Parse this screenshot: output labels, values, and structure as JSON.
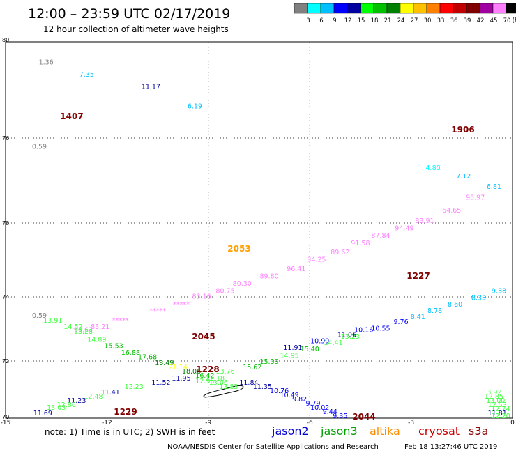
{
  "header": {
    "title": "12:00 – 23:59 UTC 02/17/2019",
    "subtitle": "12 hour collection of altimeter wave heights"
  },
  "legend": {
    "unit": "(ft)",
    "swatches": [
      {
        "value": "",
        "color": "#808080"
      },
      {
        "value": "3",
        "color": "#00ffff"
      },
      {
        "value": "6",
        "color": "#00c0ff"
      },
      {
        "value": "9",
        "color": "#0000ff"
      },
      {
        "value": "12",
        "color": "#0000a0"
      },
      {
        "value": "15",
        "color": "#00ff00"
      },
      {
        "value": "18",
        "color": "#00c000"
      },
      {
        "value": "21",
        "color": "#008000"
      },
      {
        "value": "24",
        "color": "#ffff00"
      },
      {
        "value": "27",
        "color": "#ffc000"
      },
      {
        "value": "30",
        "color": "#ff8000"
      },
      {
        "value": "33",
        "color": "#ff0000"
      },
      {
        "value": "36",
        "color": "#c00000"
      },
      {
        "value": "39",
        "color": "#800000"
      },
      {
        "value": "42",
        "color": "#a000a0"
      },
      {
        "value": "45",
        "color": "#ff80ff"
      },
      {
        "value": "70",
        "color": "#000000"
      }
    ]
  },
  "map": {
    "lat_ticks": [
      "80",
      "76",
      "78",
      "74",
      "72",
      "70"
    ],
    "lon_ticks": [
      "-15",
      "-12",
      "-9",
      "-6",
      "-3",
      "0"
    ],
    "island_name": "jan-mayen-outline"
  },
  "tracks": [
    {
      "satellite": "jason2",
      "time": "1407",
      "time_color": "#800000",
      "points": [
        {
          "v": "1.36",
          "lat": 79.5,
          "lon": -13.8,
          "color": "#808080"
        },
        {
          "v": "7.35",
          "lat": 79.25,
          "lon": -12.6,
          "color": "#00c0ff"
        },
        {
          "v": "11.17",
          "lat": 79.0,
          "lon": -10.7,
          "color": "#0000a0"
        },
        {
          "v": "6.19",
          "lat": 78.6,
          "lon": -9.4,
          "color": "#00c0ff"
        },
        {
          "v": "0.59",
          "lat": 77.75,
          "lon": -14.0,
          "color": "#808080"
        }
      ]
    },
    {
      "satellite": "altika",
      "time": "1906",
      "time_color": "#800000",
      "points": [
        {
          "v": "4.80",
          "lat": 77.25,
          "lon": -2.35,
          "color": "#00ffff"
        },
        {
          "v": "7.12",
          "lat": 77.05,
          "lon": -1.45,
          "color": "#00c0ff"
        },
        {
          "v": "6.81",
          "lat": 76.8,
          "lon": -0.55,
          "color": "#00c0ff"
        }
      ]
    },
    {
      "satellite": "s3a",
      "time": "2053",
      "time_color": "#ffa000",
      "points": [
        {
          "v": "95.97",
          "lat": 76.55,
          "lon": -1.1,
          "color": "#ff80ff"
        },
        {
          "v": "64.65",
          "lat": 76.25,
          "lon": -1.8,
          "color": "#ff80ff"
        },
        {
          "v": "83.91",
          "lat": 76.0,
          "lon": -2.6,
          "color": "#ff80ff"
        },
        {
          "v": "94.49",
          "lat": 75.8,
          "lon": -3.2,
          "color": "#ff80ff"
        },
        {
          "v": "87.84",
          "lat": 75.6,
          "lon": -3.9,
          "color": "#ff80ff"
        },
        {
          "v": "91.58",
          "lat": 75.4,
          "lon": -4.5,
          "color": "#ff80ff"
        },
        {
          "v": "89.62",
          "lat": 75.15,
          "lon": -5.1,
          "color": "#ff80ff"
        },
        {
          "v": "84.25",
          "lat": 74.95,
          "lon": -5.8,
          "color": "#ff80ff"
        },
        {
          "v": "96.41",
          "lat": 74.7,
          "lon": -6.4,
          "color": "#ff80ff"
        },
        {
          "v": "89.80",
          "lat": 74.5,
          "lon": -7.2,
          "color": "#ff80ff"
        },
        {
          "v": "80.30",
          "lat": 74.3,
          "lon": -8.0,
          "color": "#ff80ff"
        },
        {
          "v": "80.75",
          "lat": 74.1,
          "lon": -8.5,
          "color": "#ff80ff"
        },
        {
          "v": "83.16",
          "lat": 73.95,
          "lon": -9.2,
          "color": "#ff80ff"
        },
        {
          "v": "*****",
          "lat": 73.7,
          "lon": -9.8,
          "color": "#ff80ff"
        },
        {
          "v": "*****",
          "lat": 73.5,
          "lon": -10.5,
          "color": "#ff80ff"
        },
        {
          "v": "*****",
          "lat": 73.2,
          "lon": -11.6,
          "color": "#ff80ff"
        },
        {
          "v": "83.21",
          "lat": 73.0,
          "lon": -12.2,
          "color": "#ff80ff"
        },
        {
          "v": "96.63",
          "lat": 72.9,
          "lon": -12.7,
          "color": "#ff80ff"
        }
      ]
    },
    {
      "satellite": "jason3",
      "time": "2045",
      "time_color": "#800000",
      "points": [
        {
          "v": "0.59",
          "lat": 73.35,
          "lon": -14.0,
          "color": "#808080"
        },
        {
          "v": "13.91",
          "lat": 73.2,
          "lon": -13.6,
          "color": "#40ff40"
        },
        {
          "v": "14.52",
          "lat": 73.0,
          "lon": -13.0,
          "color": "#40ff40"
        },
        {
          "v": "13.28",
          "lat": 72.85,
          "lon": -12.7,
          "color": "#40ff40"
        },
        {
          "v": "14.89",
          "lat": 72.6,
          "lon": -12.3,
          "color": "#40ff40"
        },
        {
          "v": "15.53",
          "lat": 72.4,
          "lon": -11.8,
          "color": "#00c000"
        },
        {
          "v": "16.88",
          "lat": 72.2,
          "lon": -11.3,
          "color": "#00c000"
        },
        {
          "v": "17.68",
          "lat": 72.05,
          "lon": -10.8,
          "color": "#00c000"
        },
        {
          "v": "18.49",
          "lat": 71.85,
          "lon": -10.3,
          "color": "#008000"
        },
        {
          "v": "21.14",
          "lat": 71.7,
          "lon": -9.9,
          "color": "#ffff00"
        },
        {
          "v": "18.06",
          "lat": 71.55,
          "lon": -9.5,
          "color": "#008000"
        },
        {
          "v": "16.42",
          "lat": 71.4,
          "lon": -9.1,
          "color": "#00c000"
        },
        {
          "v": "13.18",
          "lat": 71.3,
          "lon": -8.8,
          "color": "#40ff40"
        },
        {
          "v": "12.95",
          "lat": 71.2,
          "lon": -9.1,
          "color": "#40ff40"
        },
        {
          "v": "13.06",
          "lat": 71.15,
          "lon": -8.7,
          "color": "#40ff40"
        },
        {
          "v": "13.76",
          "lat": 71.55,
          "lon": -8.5,
          "color": "#40ff40"
        },
        {
          "v": "13.83",
          "lat": 71.0,
          "lon": -8.4,
          "color": "#40ff40"
        },
        {
          "v": "15.62",
          "lat": 71.7,
          "lon": -7.7,
          "color": "#00c000"
        },
        {
          "v": "15.39",
          "lat": 71.9,
          "lon": -7.2,
          "color": "#00c000"
        },
        {
          "v": "14.95",
          "lat": 72.1,
          "lon": -6.6,
          "color": "#40ff40"
        },
        {
          "v": "15.40",
          "lat": 72.3,
          "lon": -6.0,
          "color": "#00c000"
        },
        {
          "v": "14.41",
          "lat": 72.5,
          "lon": -5.3,
          "color": "#40ff40"
        },
        {
          "v": "13.23",
          "lat": 72.7,
          "lon": -4.8,
          "color": "#40ff40"
        }
      ]
    },
    {
      "satellite": "jason2",
      "time": "1227",
      "time_color": "#800000",
      "points": [
        {
          "v": "9.38",
          "lat": 74.1,
          "lon": -0.4,
          "color": "#00c0ff"
        },
        {
          "v": "8.33",
          "lat": 73.9,
          "lon": -1.0,
          "color": "#00c0ff"
        },
        {
          "v": "8.60",
          "lat": 73.7,
          "lon": -1.7,
          "color": "#00c0ff"
        },
        {
          "v": "8.78",
          "lat": 73.5,
          "lon": -2.3,
          "color": "#00c0ff"
        },
        {
          "v": "8.41",
          "lat": 73.3,
          "lon": -2.8,
          "color": "#00c0ff"
        },
        {
          "v": "9.76",
          "lat": 73.15,
          "lon": -3.3,
          "color": "#0000ff"
        },
        {
          "v": "10.55",
          "lat": 72.95,
          "lon": -3.9,
          "color": "#0000ff"
        },
        {
          "v": "10.16",
          "lat": 72.9,
          "lon": -4.4,
          "color": "#0000ff"
        },
        {
          "v": "11.06",
          "lat": 72.75,
          "lon": -4.9,
          "color": "#0000a0"
        },
        {
          "v": "10.99",
          "lat": 72.55,
          "lon": -5.7,
          "color": "#0000ff"
        },
        {
          "v": "11.91",
          "lat": 72.35,
          "lon": -6.5,
          "color": "#0000a0"
        }
      ]
    },
    {
      "satellite": "cryosat",
      "time": "1228",
      "time_color": "#800000",
      "points": [
        {
          "v": "11.95",
          "lat": 71.3,
          "lon": -9.8,
          "color": "#0000a0"
        },
        {
          "v": "11.52",
          "lat": 71.15,
          "lon": -10.4,
          "color": "#0000a0"
        },
        {
          "v": "12.23",
          "lat": 71.0,
          "lon": -11.2,
          "color": "#40ff40"
        },
        {
          "v": "11.41",
          "lat": 70.8,
          "lon": -11.9,
          "color": "#0000a0"
        },
        {
          "v": "12.48",
          "lat": 70.65,
          "lon": -12.4,
          "color": "#40ff40"
        },
        {
          "v": "11.23",
          "lat": 70.5,
          "lon": -12.9,
          "color": "#0000a0"
        },
        {
          "v": "12.86",
          "lat": 70.35,
          "lon": -13.2,
          "color": "#40ff40"
        },
        {
          "v": "13.03",
          "lat": 70.25,
          "lon": -13.5,
          "color": "#40ff40"
        }
      ]
    },
    {
      "satellite": "jason2",
      "time": "1229",
      "time_color": "#800000",
      "points": [
        {
          "v": "11.69",
          "lat": 70.05,
          "lon": -13.9,
          "color": "#0000a0"
        }
      ]
    },
    {
      "satellite": "jason2",
      "time": "2044",
      "time_color": "#800000",
      "points": [
        {
          "v": "11.84",
          "lat": 71.15,
          "lon": -7.8,
          "color": "#0000a0"
        },
        {
          "v": "11.35",
          "lat": 71.0,
          "lon": -7.4,
          "color": "#0000a0"
        },
        {
          "v": "10.76",
          "lat": 70.85,
          "lon": -6.9,
          "color": "#0000ff"
        },
        {
          "v": "10.49",
          "lat": 70.7,
          "lon": -6.6,
          "color": "#0000ff"
        },
        {
          "v": "9.82",
          "lat": 70.55,
          "lon": -6.3,
          "color": "#0000ff"
        },
        {
          "v": "9.79",
          "lat": 70.4,
          "lon": -5.9,
          "color": "#0000ff"
        },
        {
          "v": "10.02",
          "lat": 70.25,
          "lon": -5.7,
          "color": "#0000ff"
        },
        {
          "v": "9.44",
          "lat": 70.1,
          "lon": -5.4,
          "color": "#0000ff"
        },
        {
          "v": "9.35",
          "lat": 69.95,
          "lon": -5.1,
          "color": "#0000ff"
        }
      ]
    },
    {
      "satellite": "jason3",
      "time": "",
      "time_color": "#800000",
      "points": [
        {
          "v": "13.92",
          "lat": 70.8,
          "lon": -0.6,
          "color": "#40ff40"
        },
        {
          "v": "12.85",
          "lat": 70.65,
          "lon": -0.55,
          "color": "#40ff40"
        },
        {
          "v": "13.00",
          "lat": 70.5,
          "lon": -0.5,
          "color": "#40ff40"
        },
        {
          "v": "12.53",
          "lat": 70.35,
          "lon": -0.45,
          "color": "#40ff40"
        },
        {
          "v": "12.74",
          "lat": 70.2,
          "lon": -0.35,
          "color": "#40ff40"
        },
        {
          "v": "11.81",
          "lat": 70.05,
          "lon": -0.45,
          "color": "#0000a0"
        },
        {
          "v": "12.20",
          "lat": 69.95,
          "lon": -0.35,
          "color": "#40ff40"
        }
      ]
    }
  ],
  "footer": {
    "note": "note:  1) Time is in UTC;  2) SWH is in feet",
    "satellites": [
      {
        "name": "jason2",
        "color": "#0000cc"
      },
      {
        "name": "jason3",
        "color": "#00a000"
      },
      {
        "name": "altika",
        "color": "#ff8c00"
      },
      {
        "name": "cryosat",
        "color": "#cc0000"
      },
      {
        "name": "s3a",
        "color": "#880000"
      }
    ],
    "credit": "NOAA/NESDIS Center for Satellite Applications and Research",
    "timestamp": "Feb 18 13:27:46 UTC 2019"
  }
}
